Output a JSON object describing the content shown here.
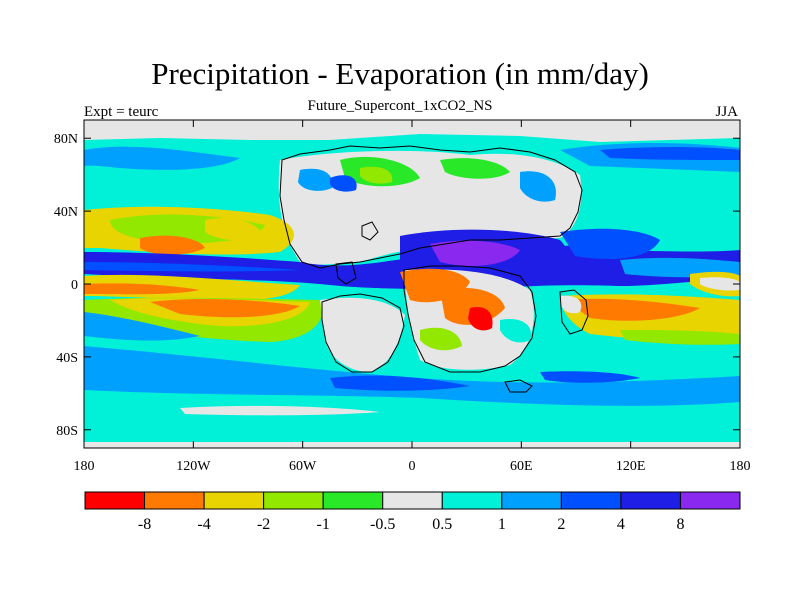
{
  "figure": {
    "title": "Precipitation - Evaporation (in mm/day)",
    "subtitle": "Future_Supercont_1xCO2_NS",
    "left_note": "Expt = teurc",
    "right_note": "JJA"
  },
  "axes": {
    "lat_ticks": [
      {
        "value": 80,
        "label": "80N"
      },
      {
        "value": 40,
        "label": "40N"
      },
      {
        "value": 0,
        "label": "0"
      },
      {
        "value": -40,
        "label": "40S"
      },
      {
        "value": -80,
        "label": "80S"
      }
    ],
    "lon_ticks": [
      {
        "value": -180,
        "label": "180"
      },
      {
        "value": -120,
        "label": "120W"
      },
      {
        "value": -60,
        "label": "60W"
      },
      {
        "value": 0,
        "label": "0"
      },
      {
        "value": 60,
        "label": "60E"
      },
      {
        "value": 120,
        "label": "120E"
      },
      {
        "value": 180,
        "label": "180"
      }
    ]
  },
  "colorbar": {
    "colors": [
      "#ff0000",
      "#ff7a00",
      "#e8d400",
      "#93e800",
      "#28e828",
      "#e6e6e6",
      "#00f0d8",
      "#00a0ff",
      "#0050ff",
      "#1e1ee6",
      "#8a28f0"
    ],
    "labels": [
      "-8",
      "-4",
      "-2",
      "-1",
      "-0.5",
      "0.5",
      "1",
      "2",
      "4",
      "8"
    ]
  },
  "palette": {
    "bg_ocean": "#00f0d8",
    "neutral": "#e6e6e6",
    "coast": "#000000"
  }
}
